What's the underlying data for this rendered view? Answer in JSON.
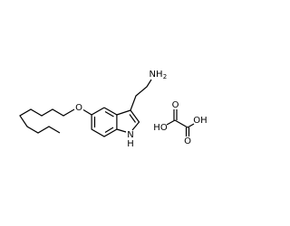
{
  "nodes": [
    {
      "label": "NH"
    },
    {
      "label": "2"
    },
    {
      "label": "O"
    },
    {
      "label": "N"
    },
    {
      "label": "H"
    },
    {
      "label": "HO"
    },
    {
      "label": "OH"
    },
    {
      "label": "O"
    },
    {
      "label": "O"
    }
  ]
}
